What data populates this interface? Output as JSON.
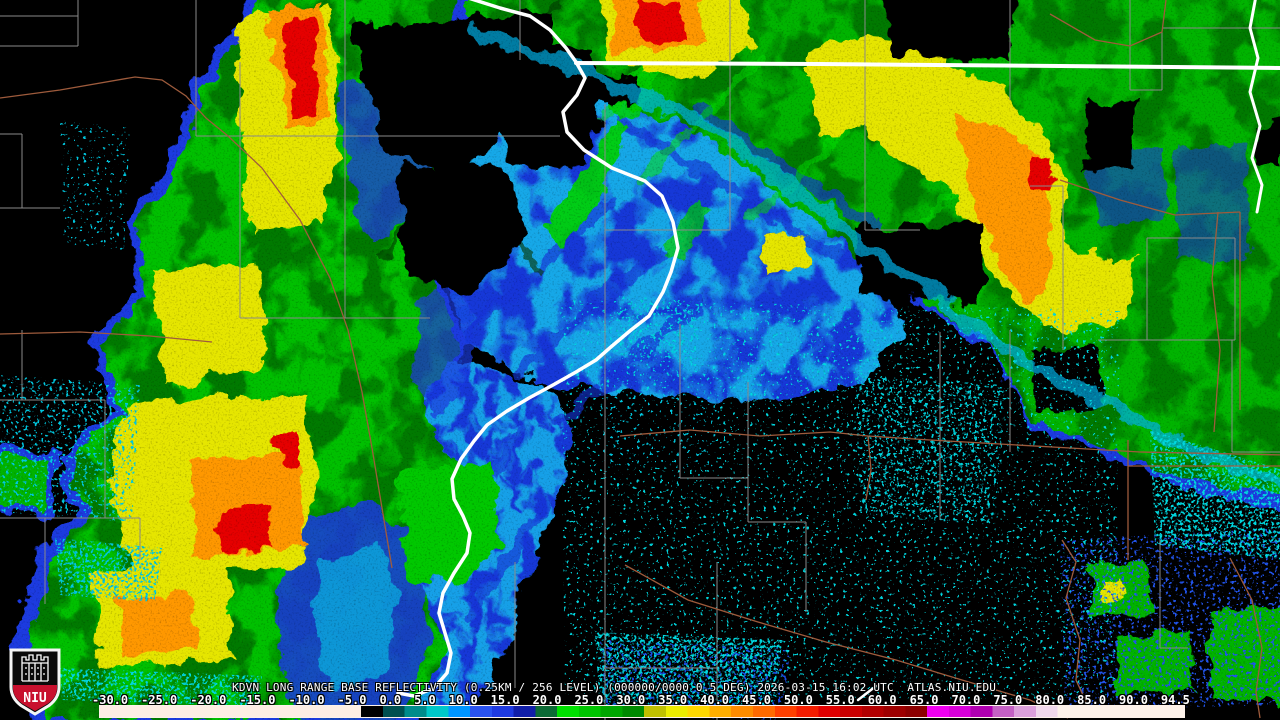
{
  "radar": {
    "station": "KDVN",
    "product": "LONG RANGE BASE REFLECTIVITY",
    "resolution": "0.25KM / 256 LEVEL",
    "scan_params": "000000/0000 0.5 DEG",
    "timestamp": "2026-03-15 16:02 UTC",
    "source": "ATLAS.NIU.EDU",
    "title_line": "KDVN LONG RANGE BASE REFLECTIVITY (0.25KM / 256 LEVEL) (000000/0000 0.5 DEG) 2026-03-15 16:02 UTC  ATLAS.NIU.EDU"
  },
  "colorbar": {
    "min": -30,
    "max": 94.5,
    "unit_labels": [
      "-30.0",
      "-25.0",
      "-20.0",
      "-15.0",
      "-10.0",
      "-5.0",
      "0.0",
      "5.0",
      "10.0",
      "15.0",
      "20.0",
      "25.0",
      "30.0",
      "35.0",
      "40.0",
      "45.0",
      "50.0",
      "55.0",
      "60.0",
      "65.0",
      "70.0",
      "75.0",
      "80.0",
      "85.0",
      "90.0",
      "94.5"
    ],
    "stops": [
      {
        "v": -30,
        "c": "#fdeee4"
      },
      {
        "v": 0,
        "c": "#000000"
      },
      {
        "v": 2.5,
        "c": "#004f4f"
      },
      {
        "v": 5,
        "c": "#008b8b"
      },
      {
        "v": 7.5,
        "c": "#00c8c8"
      },
      {
        "v": 10,
        "c": "#0096ff"
      },
      {
        "v": 12.5,
        "c": "#2a52f0"
      },
      {
        "v": 15,
        "c": "#1f3ae0"
      },
      {
        "v": 17.5,
        "c": "#111ea8"
      },
      {
        "v": 20,
        "c": "#0c6a35"
      },
      {
        "v": 22.5,
        "c": "#00e000"
      },
      {
        "v": 25,
        "c": "#00c400"
      },
      {
        "v": 27.5,
        "c": "#00a600"
      },
      {
        "v": 30,
        "c": "#008a00"
      },
      {
        "v": 32.5,
        "c": "#c0c000"
      },
      {
        "v": 35,
        "c": "#ecec00"
      },
      {
        "v": 37.5,
        "c": "#ffd800"
      },
      {
        "v": 40,
        "c": "#ffae00"
      },
      {
        "v": 42.5,
        "c": "#ff8c00"
      },
      {
        "v": 45,
        "c": "#ff6a00"
      },
      {
        "v": 47.5,
        "c": "#ff4000"
      },
      {
        "v": 50,
        "c": "#f51d00"
      },
      {
        "v": 52.5,
        "c": "#e10000"
      },
      {
        "v": 55,
        "c": "#c90000"
      },
      {
        "v": 57.5,
        "c": "#b20000"
      },
      {
        "v": 60,
        "c": "#9e0000"
      },
      {
        "v": 62.5,
        "c": "#8c0000"
      },
      {
        "v": 65,
        "c": "#f000f0"
      },
      {
        "v": 67.5,
        "c": "#d800d8"
      },
      {
        "v": 70,
        "c": "#b000b0"
      },
      {
        "v": 72.5,
        "c": "#c460c4"
      },
      {
        "v": 75,
        "c": "#dca0dc"
      },
      {
        "v": 77.5,
        "c": "#f0d8ec"
      },
      {
        "v": 80,
        "c": "#fdf2ea"
      },
      {
        "v": 94.5,
        "c": "#fdf2ea"
      }
    ]
  },
  "logo": {
    "text": "NIU",
    "accent": "#c8102e"
  },
  "map": {
    "background": "#000000",
    "county_line_color": "#8a8a8a",
    "road_color": "#9e5b3c",
    "water_line_color": "#ffffff"
  }
}
